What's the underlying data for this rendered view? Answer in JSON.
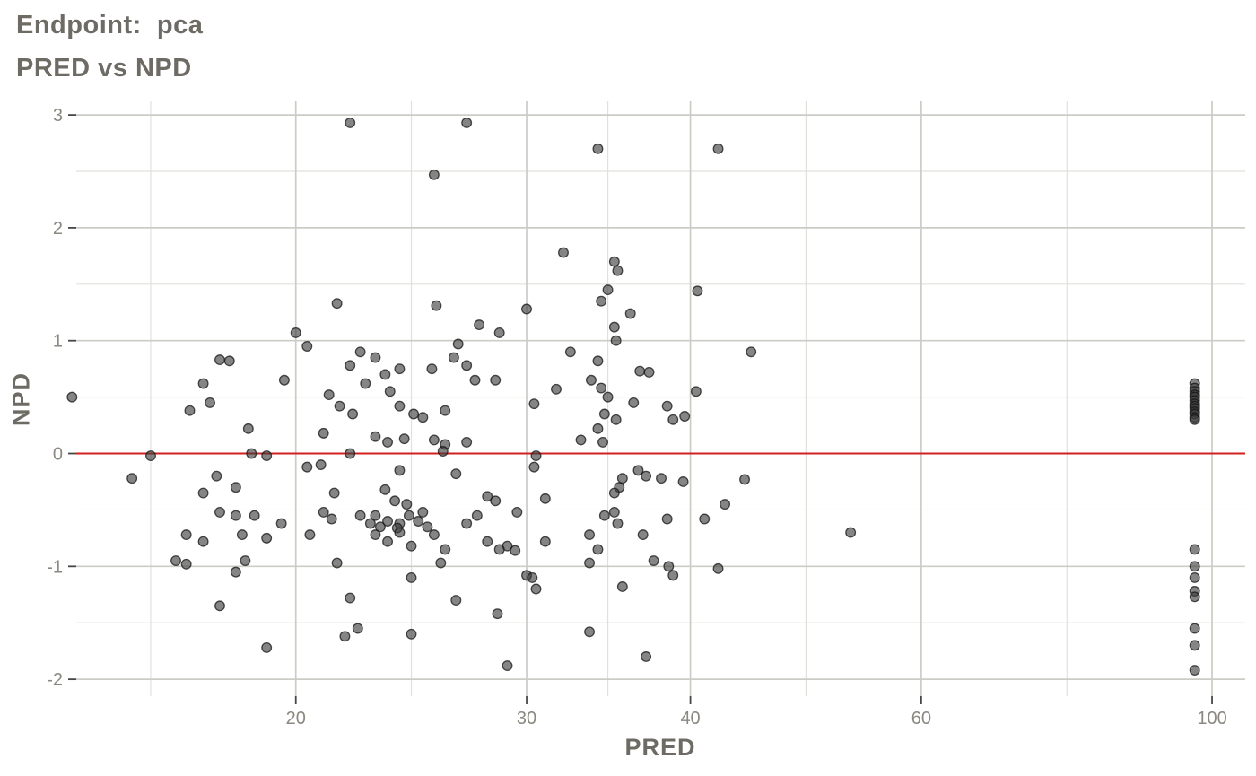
{
  "header": {
    "title": "Endpoint:  pca",
    "subtitle": "PRED vs NPD"
  },
  "chart_data": {
    "type": "scatter",
    "title": "Endpoint:  pca",
    "subtitle": "PRED vs NPD",
    "xlabel": "PRED",
    "ylabel": "NPD",
    "x_scale": "log10",
    "xlim": [
      13.6,
      106
    ],
    "ylim": [
      -2.15,
      3.12
    ],
    "x_ticks": [
      20,
      30,
      40,
      60,
      100
    ],
    "x_minor_gridlines": [
      15.5,
      24.5,
      34.6,
      49,
      77.5
    ],
    "y_ticks": [
      3,
      2,
      1,
      0,
      -1,
      -2
    ],
    "y_minor_gridlines": [
      2.5,
      1.5,
      0.5,
      -0.5,
      -1.5
    ],
    "grid": true,
    "legend": "none",
    "reference_line": {
      "y": 0,
      "color": "#d21f1f"
    },
    "colors": {
      "grid_major": "#ccccc6",
      "grid_minor": "#e1e1db",
      "tick": "#474747",
      "tick_label": "#8a8880",
      "title_text": "#6d6b64",
      "point_fill": "#3a3a3a",
      "point_stroke": "#141414",
      "background": "#ffffff"
    },
    "points": [
      [
        22,
        2.93
      ],
      [
        27,
        2.93
      ],
      [
        25.5,
        2.47
      ],
      [
        34,
        2.7
      ],
      [
        42,
        2.7
      ],
      [
        32,
        1.78
      ],
      [
        35,
        1.7
      ],
      [
        35.2,
        1.62
      ],
      [
        34.6,
        1.45
      ],
      [
        40.5,
        1.44
      ],
      [
        34.2,
        1.35
      ],
      [
        21.5,
        1.33
      ],
      [
        25.6,
        1.31
      ],
      [
        30,
        1.28
      ],
      [
        36,
        1.24
      ],
      [
        27.6,
        1.14
      ],
      [
        35,
        1.12
      ],
      [
        28.6,
        1.07
      ],
      [
        20,
        1.07
      ],
      [
        35.1,
        1.0
      ],
      [
        26.6,
        0.97
      ],
      [
        20.4,
        0.95
      ],
      [
        22.4,
        0.9
      ],
      [
        32.4,
        0.9
      ],
      [
        44.5,
        0.9
      ],
      [
        23,
        0.85
      ],
      [
        26.4,
        0.85
      ],
      [
        17.5,
        0.83
      ],
      [
        17.8,
        0.82
      ],
      [
        34,
        0.82
      ],
      [
        22,
        0.78
      ],
      [
        27,
        0.78
      ],
      [
        24,
        0.75
      ],
      [
        25.4,
        0.75
      ],
      [
        36.6,
        0.73
      ],
      [
        37.2,
        0.72
      ],
      [
        23.4,
        0.7
      ],
      [
        19.6,
        0.65
      ],
      [
        27.4,
        0.65
      ],
      [
        28.4,
        0.65
      ],
      [
        33.6,
        0.65
      ],
      [
        17,
        0.62
      ],
      [
        22.6,
        0.62
      ],
      [
        34.2,
        0.58
      ],
      [
        31.6,
        0.57
      ],
      [
        23.6,
        0.55
      ],
      [
        40.4,
        0.55
      ],
      [
        13.5,
        0.5
      ],
      [
        34.6,
        0.5
      ],
      [
        21.2,
        0.52
      ],
      [
        17.2,
        0.45
      ],
      [
        36.2,
        0.45
      ],
      [
        30.4,
        0.44
      ],
      [
        21.6,
        0.42
      ],
      [
        24,
        0.42
      ],
      [
        38.4,
        0.42
      ],
      [
        16.6,
        0.38
      ],
      [
        26,
        0.38
      ],
      [
        22.1,
        0.35
      ],
      [
        24.6,
        0.35
      ],
      [
        34.4,
        0.35
      ],
      [
        39.6,
        0.33
      ],
      [
        25,
        0.32
      ],
      [
        35.1,
        0.3
      ],
      [
        38.8,
        0.3
      ],
      [
        18.4,
        0.22
      ],
      [
        34,
        0.22
      ],
      [
        21,
        0.18
      ],
      [
        23,
        0.15
      ],
      [
        24.2,
        0.13
      ],
      [
        25.5,
        0.12
      ],
      [
        33,
        0.12
      ],
      [
        23.5,
        0.1
      ],
      [
        27,
        0.1
      ],
      [
        34.3,
        0.1
      ],
      [
        26,
        0.08
      ],
      [
        25.9,
        0.02
      ],
      [
        18.5,
        0.0
      ],
      [
        22,
        0.0
      ],
      [
        15.5,
        -0.02
      ],
      [
        19,
        -0.02
      ],
      [
        30.5,
        -0.02
      ],
      [
        20.9,
        -0.1
      ],
      [
        20.4,
        -0.12
      ],
      [
        30.4,
        -0.12
      ],
      [
        24,
        -0.15
      ],
      [
        36.5,
        -0.15
      ],
      [
        26.5,
        -0.18
      ],
      [
        17.4,
        -0.2
      ],
      [
        37,
        -0.2
      ],
      [
        15,
        -0.22
      ],
      [
        35.5,
        -0.22
      ],
      [
        38,
        -0.22
      ],
      [
        44,
        -0.23
      ],
      [
        39.5,
        -0.25
      ],
      [
        18,
        -0.3
      ],
      [
        35.3,
        -0.3
      ],
      [
        23.4,
        -0.32
      ],
      [
        17,
        -0.35
      ],
      [
        21.4,
        -0.35
      ],
      [
        35,
        -0.35
      ],
      [
        28,
        -0.38
      ],
      [
        31,
        -0.4
      ],
      [
        23.8,
        -0.42
      ],
      [
        28.4,
        -0.42
      ],
      [
        24.3,
        -0.45
      ],
      [
        42.5,
        -0.45
      ],
      [
        17.5,
        -0.52
      ],
      [
        21,
        -0.52
      ],
      [
        25,
        -0.52
      ],
      [
        29.5,
        -0.52
      ],
      [
        35,
        -0.52
      ],
      [
        18,
        -0.55
      ],
      [
        18.6,
        -0.55
      ],
      [
        22.4,
        -0.55
      ],
      [
        23,
        -0.55
      ],
      [
        24.4,
        -0.55
      ],
      [
        27.5,
        -0.55
      ],
      [
        34.4,
        -0.55
      ],
      [
        21.3,
        -0.58
      ],
      [
        38.4,
        -0.58
      ],
      [
        41,
        -0.58
      ],
      [
        23.5,
        -0.6
      ],
      [
        24.8,
        -0.6
      ],
      [
        19.5,
        -0.62
      ],
      [
        22.8,
        -0.62
      ],
      [
        24,
        -0.62
      ],
      [
        27,
        -0.62
      ],
      [
        35.2,
        -0.62
      ],
      [
        23.2,
        -0.65
      ],
      [
        25.2,
        -0.65
      ],
      [
        23.9,
        -0.66
      ],
      [
        24,
        -0.7
      ],
      [
        53,
        -0.7
      ],
      [
        16.5,
        -0.72
      ],
      [
        18.2,
        -0.72
      ],
      [
        20.5,
        -0.72
      ],
      [
        23,
        -0.72
      ],
      [
        25.5,
        -0.72
      ],
      [
        33.5,
        -0.72
      ],
      [
        36.8,
        -0.72
      ],
      [
        19,
        -0.75
      ],
      [
        17,
        -0.78
      ],
      [
        23.5,
        -0.78
      ],
      [
        28,
        -0.78
      ],
      [
        31,
        -0.78
      ],
      [
        24.5,
        -0.82
      ],
      [
        29,
        -0.82
      ],
      [
        26,
        -0.85
      ],
      [
        28.6,
        -0.85
      ],
      [
        34,
        -0.85
      ],
      [
        29.4,
        -0.86
      ],
      [
        16.2,
        -0.95
      ],
      [
        18.3,
        -0.95
      ],
      [
        37.5,
        -0.95
      ],
      [
        21.5,
        -0.97
      ],
      [
        25.8,
        -0.97
      ],
      [
        33.5,
        -0.97
      ],
      [
        16.5,
        -0.98
      ],
      [
        38.5,
        -1.0
      ],
      [
        42,
        -1.02
      ],
      [
        18,
        -1.05
      ],
      [
        30,
        -1.08
      ],
      [
        38.8,
        -1.08
      ],
      [
        24.5,
        -1.1
      ],
      [
        30.3,
        -1.1
      ],
      [
        35.5,
        -1.18
      ],
      [
        30.5,
        -1.2
      ],
      [
        22,
        -1.28
      ],
      [
        26.5,
        -1.3
      ],
      [
        17.5,
        -1.35
      ],
      [
        28.5,
        -1.42
      ],
      [
        22.3,
        -1.55
      ],
      [
        33.5,
        -1.58
      ],
      [
        24.5,
        -1.6
      ],
      [
        21.8,
        -1.62
      ],
      [
        19,
        -1.72
      ],
      [
        37,
        -1.8
      ],
      [
        29,
        -1.88
      ],
      [
        97,
        0.62
      ],
      [
        97,
        0.58
      ],
      [
        97,
        0.55
      ],
      [
        97,
        0.52
      ],
      [
        97,
        0.5
      ],
      [
        97,
        0.47
      ],
      [
        97,
        0.44
      ],
      [
        97,
        0.42
      ],
      [
        97,
        0.4
      ],
      [
        97,
        0.37
      ],
      [
        97,
        0.35
      ],
      [
        97,
        0.32
      ],
      [
        97,
        0.3
      ],
      [
        97,
        -0.85
      ],
      [
        97,
        -1.0
      ],
      [
        97,
        -1.1
      ],
      [
        97,
        -1.22
      ],
      [
        97,
        -1.27
      ],
      [
        97,
        -1.55
      ],
      [
        97,
        -1.7
      ],
      [
        97,
        -1.92
      ]
    ]
  }
}
